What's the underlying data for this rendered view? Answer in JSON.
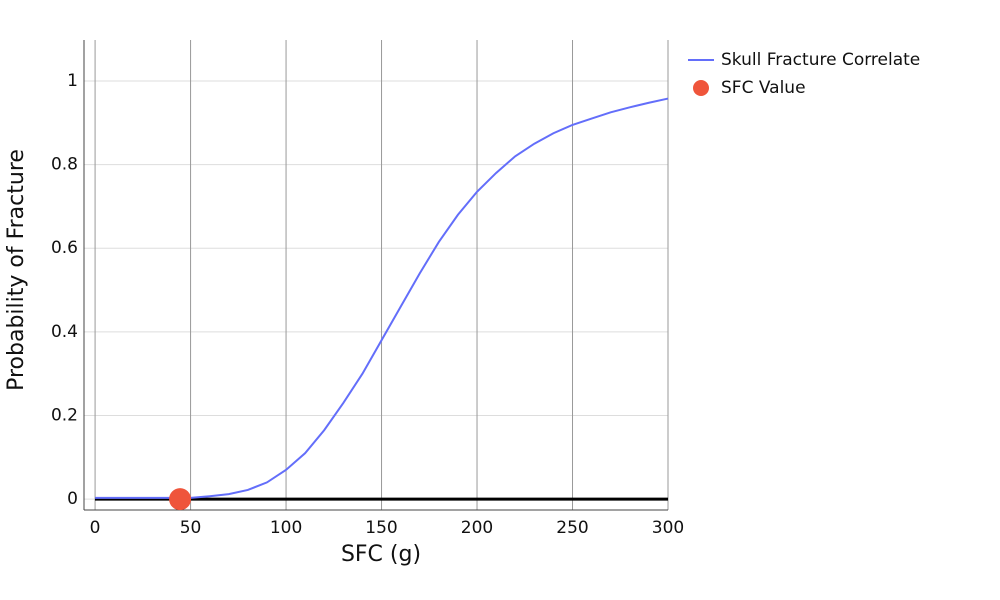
{
  "chart_data": {
    "type": "line",
    "x_label": "SFC (g)",
    "y_label": "Probability of Fracture",
    "x": [
      0,
      10,
      20,
      30,
      40,
      50,
      60,
      70,
      80,
      90,
      100,
      110,
      120,
      130,
      140,
      150,
      160,
      170,
      180,
      190,
      200,
      210,
      220,
      230,
      240,
      250,
      260,
      270,
      280,
      290,
      300
    ],
    "series": [
      {
        "name": "Skull Fracture Correlate",
        "color": "#636efa",
        "mode": "line",
        "values": [
          0.003,
          0.003,
          0.003,
          0.003,
          0.003,
          0.003,
          0.007,
          0.012,
          0.022,
          0.04,
          0.07,
          0.11,
          0.165,
          0.23,
          0.3,
          0.38,
          0.46,
          0.54,
          0.615,
          0.68,
          0.735,
          0.78,
          0.82,
          0.85,
          0.875,
          0.895,
          0.91,
          0.925,
          0.937,
          0.948,
          0.958
        ]
      },
      {
        "name": "SFC Value",
        "color": "#ef553b",
        "mode": "marker",
        "x": [
          44.5
        ],
        "values": [
          0
        ]
      }
    ],
    "xlim": [
      -5.8,
      300
    ],
    "ylim": [
      -0.026,
      1.098
    ],
    "xticks": [
      0,
      50,
      100,
      150,
      200,
      250,
      300
    ],
    "yticks": [
      0,
      0.2,
      0.4,
      0.6,
      0.8,
      1
    ],
    "grid": true,
    "legend": "top-right"
  }
}
